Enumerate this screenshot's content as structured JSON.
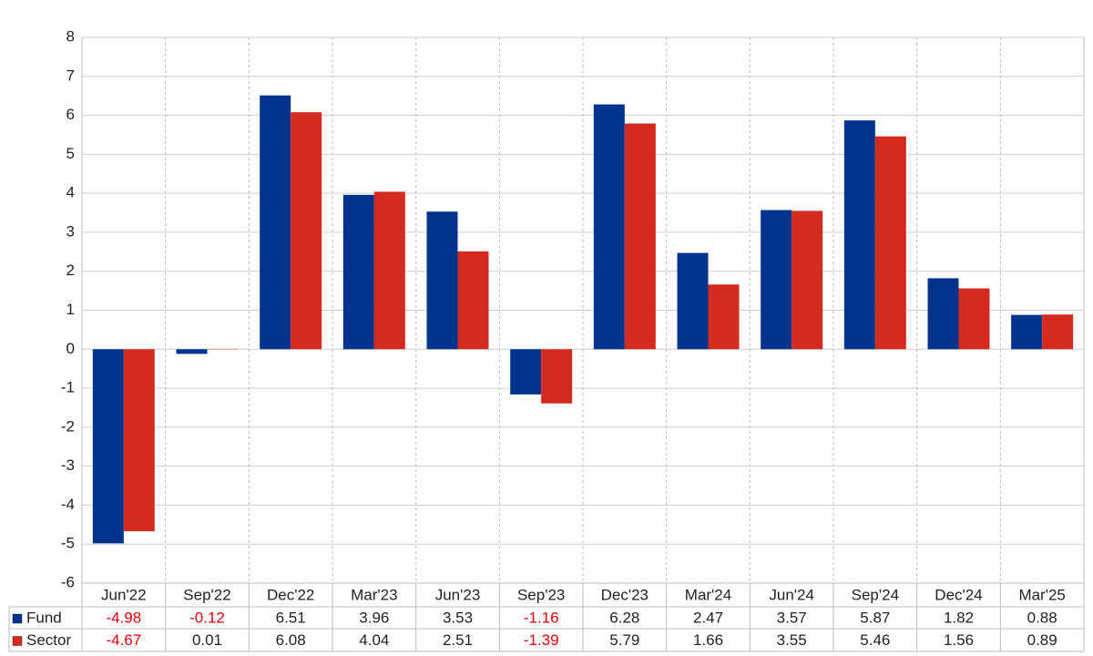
{
  "chart_data": {
    "type": "bar",
    "categories": [
      "Jun'22",
      "Sep'22",
      "Dec'22",
      "Mar'23",
      "Jun'23",
      "Sep'23",
      "Dec'23",
      "Mar'24",
      "Jun'24",
      "Sep'24",
      "Dec'24",
      "Mar'25"
    ],
    "series": [
      {
        "name": "Fund",
        "color": "#00338d",
        "values": [
          -4.98,
          -0.12,
          6.51,
          3.96,
          3.53,
          -1.16,
          6.28,
          2.47,
          3.57,
          5.87,
          1.82,
          0.88
        ]
      },
      {
        "name": "Sector",
        "color": "#d52b1e",
        "values": [
          -4.67,
          0.01,
          6.08,
          4.04,
          2.51,
          -1.39,
          5.79,
          1.66,
          3.55,
          5.46,
          1.56,
          0.89
        ]
      }
    ],
    "ylim": [
      -6,
      8
    ],
    "yticks": [
      -6,
      -5,
      -4,
      -3,
      -2,
      -1,
      0,
      1,
      2,
      3,
      4,
      5,
      6,
      7,
      8
    ],
    "grid": true,
    "data_table": true,
    "negative_color": "#e8000b"
  }
}
